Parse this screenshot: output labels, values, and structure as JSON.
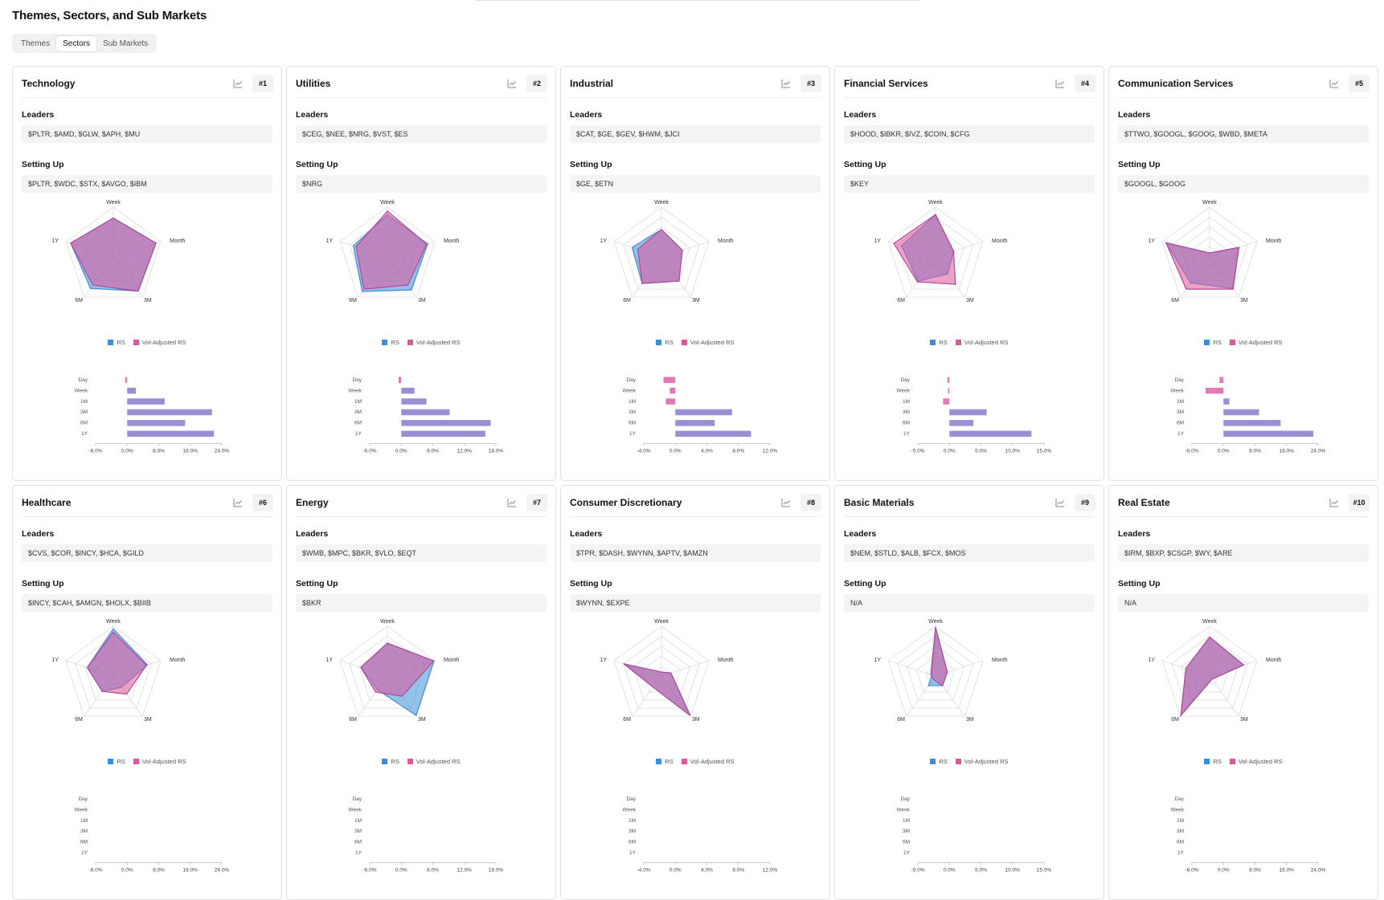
{
  "page": {
    "title": "Themes, Sectors, and Sub Markets",
    "tabs": [
      "Themes",
      "Sectors",
      "Sub Markets"
    ],
    "active_tab": "Sectors"
  },
  "labels": {
    "leaders": "Leaders",
    "setting_up": "Setting Up",
    "legend_rs": "RS",
    "legend_vol": "Vol-Adjusted RS",
    "radar_axes": [
      "Week",
      "Month",
      "3M",
      "6M",
      "1Y"
    ],
    "bar_periods": [
      "Day",
      "Week",
      "1M",
      "3M",
      "6M",
      "1Y"
    ]
  },
  "colors": {
    "rs": "#3b8fd8",
    "vol": "#e0569a",
    "overlap": "#9b8fd4",
    "radar_fill": "#a793d0"
  },
  "chart_data": [
    {
      "title": "Technology",
      "type": "radar+bar",
      "rank": "#1",
      "leaders": "$PLTR, $AMD, $GLW, $APH, $MU",
      "setting_up": "$PLTR, $WDC, $STX, $AVGO, $IBM",
      "radar": {
        "axes": [
          "Week",
          "Month",
          "3M",
          "6M",
          "1Y"
        ],
        "rs": [
          0.78,
          0.9,
          0.85,
          0.78,
          0.9
        ],
        "vol": [
          0.78,
          0.9,
          0.85,
          0.7,
          0.9
        ]
      },
      "bars": {
        "ticks": [
          "-8.0%",
          "0.0%",
          "8.0%",
          "16.0%",
          "24.0%"
        ],
        "min": -8,
        "max": 24,
        "values": [
          -0.5,
          2.2,
          9.5,
          21.5,
          14.7,
          22
        ]
      }
    },
    {
      "title": "Utilities",
      "type": "radar+bar",
      "rank": "#2",
      "leaders": "$CEG, $NEE, $NRG, $VST, $ES",
      "setting_up": "$NRG",
      "radar": {
        "axes": [
          "Week",
          "Month",
          "3M",
          "6M",
          "1Y"
        ],
        "rs": [
          0.85,
          0.85,
          0.82,
          0.86,
          0.72
        ],
        "vol": [
          0.92,
          0.83,
          0.7,
          0.8,
          0.66
        ]
      },
      "bars": {
        "ticks": [
          "-6.0%",
          "0.0%",
          "6.0%",
          "12.0%",
          "18.0%"
        ],
        "min": -6,
        "max": 18,
        "values": [
          -0.5,
          2.5,
          4.8,
          9.2,
          17,
          16
        ]
      }
    },
    {
      "title": "Industrial",
      "type": "radar+bar",
      "rank": "#3",
      "leaders": "$CAT, $GE, $GEV, $HWM, $JCI",
      "setting_up": "$GE, $ETN",
      "radar": {
        "axes": [
          "Week",
          "Month",
          "3M",
          "6M",
          "1Y"
        ],
        "rs": [
          0.55,
          0.44,
          0.6,
          0.66,
          0.62
        ],
        "vol": [
          0.55,
          0.44,
          0.6,
          0.66,
          0.5
        ]
      },
      "bars": {
        "ticks": [
          "-4.0%",
          "0.0%",
          "4.0%",
          "8.0%",
          "12.0%"
        ],
        "min": -4,
        "max": 12,
        "values": [
          -1.5,
          -0.7,
          -1.2,
          7.2,
          5,
          9.6
        ]
      }
    },
    {
      "title": "Financial Services",
      "type": "radar+bar",
      "rank": "#4",
      "leaders": "$HOOD, $IBKR, $IVZ, $COIN, $CFG",
      "setting_up": "$KEY",
      "radar": {
        "axes": [
          "Week",
          "Month",
          "3M",
          "6M",
          "1Y"
        ],
        "rs": [
          0.85,
          0.38,
          0.42,
          0.6,
          0.72
        ],
        "vol": [
          0.85,
          0.38,
          0.68,
          0.62,
          0.88
        ]
      },
      "bars": {
        "ticks": [
          "-5.0%",
          "0.0%",
          "5.0%",
          "10.0%",
          "15.0%"
        ],
        "min": -5,
        "max": 15,
        "values": [
          -0.3,
          -0.2,
          -1,
          5.9,
          3.8,
          13
        ]
      }
    },
    {
      "title": "Communication Services",
      "type": "radar+bar",
      "rank": "#5",
      "leaders": "$TTWO, $GOOGL, $GOOG, $WBD, $META",
      "setting_up": "$GOOGL, $GOOG",
      "radar": {
        "axes": [
          "Week",
          "Month",
          "3M",
          "6M",
          "1Y"
        ],
        "rs": [
          0.08,
          0.62,
          0.78,
          0.65,
          0.92
        ],
        "vol": [
          0.08,
          0.62,
          0.8,
          0.8,
          0.92
        ]
      },
      "bars": {
        "ticks": [
          "-8.0%",
          "0.0%",
          "8.0%",
          "16.0%",
          "24.0%"
        ],
        "min": -8,
        "max": 24,
        "values": [
          -1,
          -4.5,
          1.5,
          9,
          14.5,
          22.8
        ]
      }
    },
    {
      "title": "Healthcare",
      "type": "radar+bar",
      "rank": "#6",
      "leaders": "$CVS, $COR, $INCY, $HCA, $GILD",
      "setting_up": "$INCY, $CAH, $AMGN, $HOLX, $BIIB",
      "radar": {
        "axes": [
          "Week",
          "Month",
          "3M",
          "6M",
          "1Y"
        ],
        "rs": [
          0.95,
          0.72,
          0.28,
          0.38,
          0.55
        ],
        "vol": [
          0.88,
          0.7,
          0.45,
          0.38,
          0.55
        ]
      },
      "bars": {
        "ticks": [
          "-8.0%",
          "0.0%",
          "8.0%",
          "16.0%",
          "24.0%"
        ],
        "min": -8,
        "max": 24,
        "values": [
          0,
          0,
          0,
          0,
          0,
          0
        ]
      }
    },
    {
      "title": "Energy",
      "type": "radar+bar",
      "rank": "#7",
      "leaders": "$WMB, $MPC, $BKR, $VLO, $EQT",
      "setting_up": "$BKR",
      "radar": {
        "axes": [
          "Week",
          "Month",
          "3M",
          "6M",
          "1Y"
        ],
        "rs": [
          0.66,
          0.98,
          0.98,
          0.34,
          0.56
        ],
        "vol": [
          0.66,
          0.98,
          0.5,
          0.4,
          0.56
        ]
      },
      "bars": {
        "ticks": [
          "-6.0%",
          "0.0%",
          "6.0%",
          "12.0%",
          "18.0%"
        ],
        "min": -6,
        "max": 18,
        "values": [
          0,
          0,
          0,
          0,
          0,
          0
        ]
      }
    },
    {
      "title": "Consumer Discretionary",
      "type": "radar+bar",
      "rank": "#8",
      "leaders": "$TPR, $DASH, $WYNN, $APTV, $AMZN",
      "setting_up": "$WYNN, $EXPE",
      "radar": {
        "axes": [
          "Week",
          "Month",
          "3M",
          "6M",
          "1Y"
        ],
        "rs": [
          0.08,
          0.2,
          0.98,
          0.28,
          0.76
        ],
        "vol": [
          0.08,
          0.2,
          0.98,
          0.28,
          0.8
        ]
      },
      "bars": {
        "ticks": [
          "-4.0%",
          "0.0%",
          "4.0%",
          "8.0%",
          "12.0%"
        ],
        "min": -4,
        "max": 12,
        "values": [
          0,
          0,
          0,
          0,
          0,
          0
        ]
      }
    },
    {
      "title": "Basic Materials",
      "type": "radar+bar",
      "rank": "#9",
      "leaders": "$NEM, $STLD, $ALB, $FCX, $MOS",
      "setting_up": "N/A",
      "radar": {
        "axes": [
          "Week",
          "Month",
          "3M",
          "6M",
          "1Y"
        ],
        "rs": [
          0.98,
          0.25,
          0.24,
          0.24,
          0.08
        ],
        "vol": [
          0.98,
          0.25,
          0.24,
          0.08,
          0.1
        ]
      },
      "bars": {
        "ticks": [
          "-5.0%",
          "0.0%",
          "5.0%",
          "10.0%",
          "15.0%"
        ],
        "min": -5,
        "max": 15,
        "values": [
          0,
          0,
          0,
          0,
          0,
          0
        ]
      }
    },
    {
      "title": "Real Estate",
      "type": "radar+bar",
      "rank": "#10",
      "leaders": "$IRM, $BXP, $CSGP, $WY, $ARE",
      "setting_up": "N/A",
      "radar": {
        "axes": [
          "Week",
          "Month",
          "3M",
          "6M",
          "1Y"
        ],
        "rs": [
          0.78,
          0.72,
          0.08,
          0.98,
          0.5
        ],
        "vol": [
          0.78,
          0.72,
          0.08,
          0.98,
          0.5
        ]
      },
      "bars": {
        "ticks": [
          "-8.0%",
          "0.0%",
          "8.0%",
          "16.0%",
          "24.0%"
        ],
        "min": -8,
        "max": 24,
        "values": [
          0,
          0,
          0,
          0,
          0,
          0
        ]
      }
    }
  ]
}
